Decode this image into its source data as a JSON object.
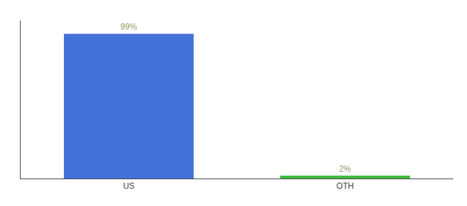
{
  "chart_data": {
    "type": "bar",
    "categories": [
      "US",
      "OTH"
    ],
    "values": [
      99,
      2
    ],
    "value_labels": [
      "99%",
      "2%"
    ],
    "colors": [
      "#4472db",
      "#3dba3d"
    ],
    "ylim": [
      0,
      108
    ],
    "yticks": [],
    "data_labels": true,
    "tick_labels": "x",
    "grid": false
  }
}
